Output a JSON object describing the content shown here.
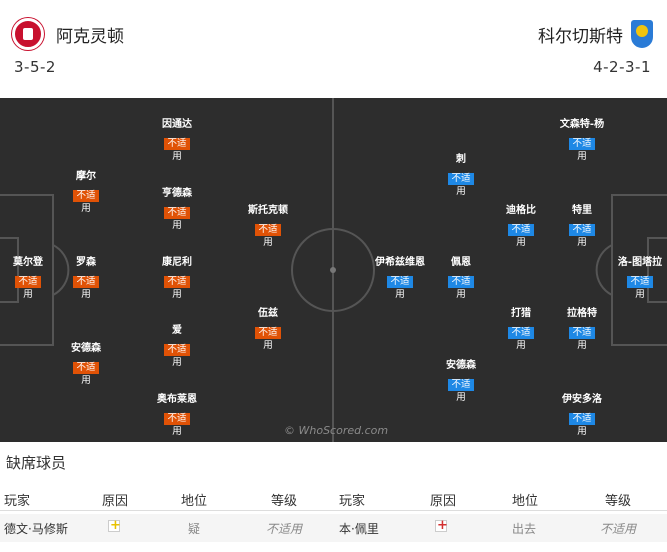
{
  "home": {
    "name": "阿克灵顿",
    "formation": "3-5-2"
  },
  "away": {
    "name": "科尔切斯特",
    "formation": "4-2-3-1"
  },
  "status_label": "不适",
  "status_label_2": "用",
  "watermark": "© WhoScored.com",
  "home_players": [
    {
      "name": "莫尔登"
    },
    {
      "name": "摩尔"
    },
    {
      "name": "罗森"
    },
    {
      "name": "安德森"
    },
    {
      "name": "因通达"
    },
    {
      "name": "亨德森"
    },
    {
      "name": "康尼利"
    },
    {
      "name": "爱"
    },
    {
      "name": "奥布莱恩"
    },
    {
      "name": "斯托克顿"
    },
    {
      "name": "伍兹"
    }
  ],
  "away_players": [
    {
      "name": "洛-图塔拉"
    },
    {
      "name": "文森特-杨"
    },
    {
      "name": "特里"
    },
    {
      "name": "拉格特"
    },
    {
      "name": "伊安多洛"
    },
    {
      "name": "刺"
    },
    {
      "name": "迪格比"
    },
    {
      "name": "打猎"
    },
    {
      "name": "佩恩"
    },
    {
      "name": "安德森"
    },
    {
      "name": "伊希兹维恩"
    }
  ],
  "missing": {
    "title": "缺席球员",
    "headers": [
      "玩家",
      "原因",
      "地位",
      "等级",
      "玩家",
      "原因",
      "地位",
      "等级"
    ],
    "rows": [
      {
        "home_player": "德文·马修斯",
        "home_reason": "yellow-card-icon",
        "home_status": "疑",
        "home_level": "不适用",
        "away_player": "本·佩里",
        "away_reason": "red-cross-icon",
        "away_status": "出去",
        "away_level": "不适用"
      }
    ]
  },
  "colors": {
    "pitch": "#2d2d2d",
    "home_tag": "#e05206",
    "away_tag": "#1e88e5"
  }
}
